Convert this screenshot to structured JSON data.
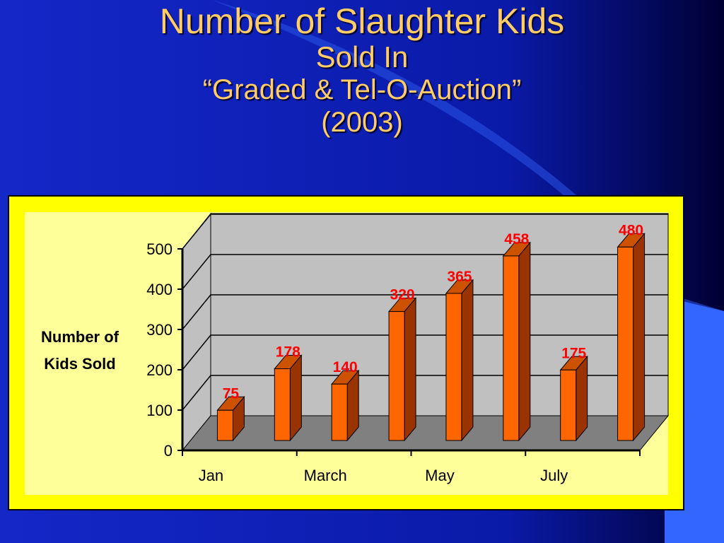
{
  "slide": {
    "title_line1": "Number of Slaughter Kids",
    "title_line2": "Sold In",
    "title_line3": "“Graded & Tel-O-Auction”",
    "title_line4": "(2003)"
  },
  "colors": {
    "background": "#0a1aa8",
    "frame": "#ffff00",
    "panel": "#ffff99",
    "wall": "#c0c0c0",
    "floor": "#808080",
    "bar_front": "#ff6600",
    "bar_side": "#993300",
    "bar_top": "#cc5200",
    "data_label": "#ff0000"
  },
  "chart_data": {
    "type": "bar",
    "style": "3d-column",
    "categories": [
      "Jan",
      "",
      "March",
      "",
      "May",
      "",
      "July",
      ""
    ],
    "values": [
      75,
      178,
      140,
      320,
      365,
      458,
      175,
      480
    ],
    "data_labels": [
      "75",
      "178",
      "140",
      "320",
      "365",
      "458",
      "175",
      "480"
    ],
    "ylabel_line1": "Number of",
    "ylabel_line2": "Kids Sold",
    "yticks": [
      "0",
      "100",
      "200",
      "300",
      "400",
      "500"
    ],
    "ytick_values": [
      0,
      100,
      200,
      300,
      400,
      500
    ],
    "ylim": [
      0,
      500
    ],
    "grid": true,
    "legend": "none"
  }
}
